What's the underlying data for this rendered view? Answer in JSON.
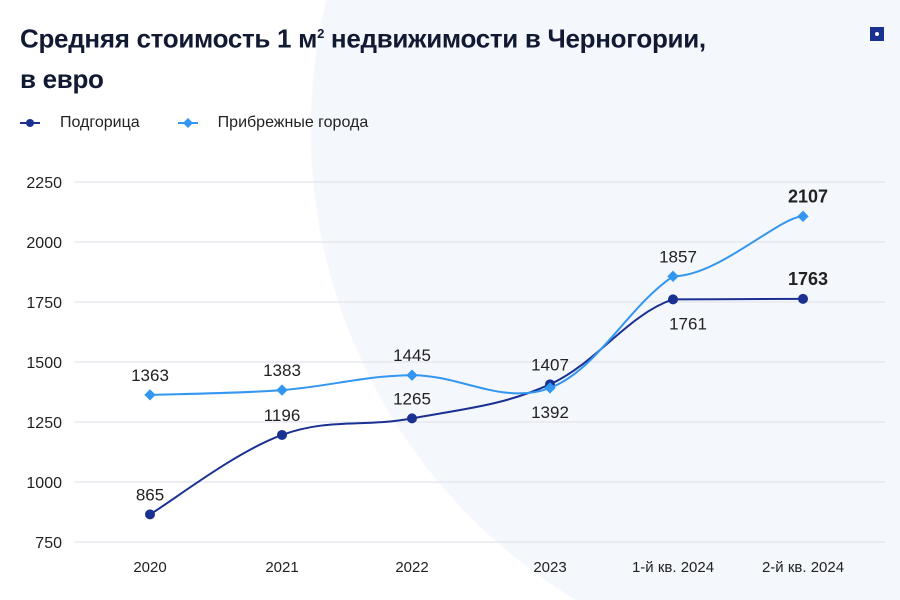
{
  "title_main": "Средняя стоимость 1 м",
  "title_sup": "2",
  "title_rest": " недвижимости в Черногории,",
  "title_line2": "в евро",
  "chart_data": {
    "type": "line",
    "title": "Средняя стоимость 1 м² недвижимости в Черногории, в евро",
    "categories": [
      "2020",
      "2021",
      "2022",
      "2023",
      "1-й кв. 2024",
      "2-й кв. 2024"
    ],
    "ylim": [
      750,
      2250
    ],
    "yticks": [
      750,
      1000,
      1250,
      1500,
      1750,
      2000,
      2250
    ],
    "grid": true,
    "legend_position": "top-left",
    "series": [
      {
        "name": "Подгорица",
        "values": [
          865,
          1196,
          1265,
          1407,
          1761,
          1763
        ],
        "color": "#1a3192",
        "marker": "circle",
        "label_pos": [
          "above",
          "above",
          "above",
          "above",
          "below",
          "above"
        ]
      },
      {
        "name": "Прибрежные города",
        "values": [
          1363,
          1383,
          1445,
          1392,
          1857,
          2107
        ],
        "color": "#3396f0",
        "marker": "diamond",
        "label_pos": [
          "above",
          "above",
          "above",
          "below",
          "above",
          "above"
        ]
      }
    ]
  }
}
